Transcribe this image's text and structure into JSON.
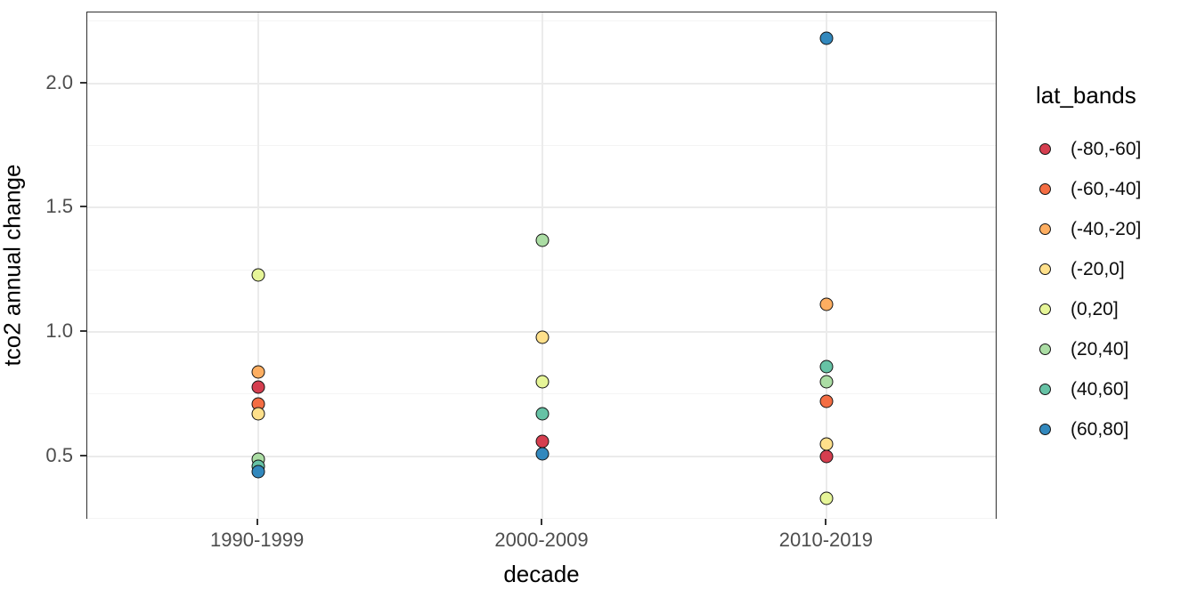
{
  "chart_data": {
    "type": "scatter",
    "title": "",
    "xlabel": "decade",
    "ylabel": "tco2 annual change",
    "legend_title": "lat_bands",
    "legend_position": "right",
    "grid": true,
    "categories": [
      "1990-1999",
      "2000-2009",
      "2010-2019"
    ],
    "y_ticks": [
      0.5,
      1.0,
      1.5,
      2.0
    ],
    "y_tick_labels": [
      "0.5",
      "1.0",
      "1.5",
      "2.0"
    ],
    "y_minor_ticks": [
      0.25,
      0.75,
      1.25,
      1.75,
      2.25
    ],
    "ylim": [
      0.245,
      2.285
    ],
    "series": [
      {
        "name": "(-80,-60]",
        "color": "#D53E4F",
        "points": [
          {
            "x": "1990-1999",
            "y": 0.78
          },
          {
            "x": "2000-2009",
            "y": 0.56
          },
          {
            "x": "2010-2019",
            "y": 0.5
          }
        ]
      },
      {
        "name": "(-60,-40]",
        "color": "#F46D43",
        "points": [
          {
            "x": "1990-1999",
            "y": 0.71
          },
          {
            "x": "2010-2019",
            "y": 0.72
          }
        ]
      },
      {
        "name": "(-40,-20]",
        "color": "#FDAE61",
        "points": [
          {
            "x": "1990-1999",
            "y": 0.84
          },
          {
            "x": "2010-2019",
            "y": 1.11
          }
        ]
      },
      {
        "name": "(-20,0]",
        "color": "#FEE08B",
        "points": [
          {
            "x": "1990-1999",
            "y": 0.67
          },
          {
            "x": "2000-2009",
            "y": 0.98
          },
          {
            "x": "2010-2019",
            "y": 0.55
          }
        ]
      },
      {
        "name": "(0,20]",
        "color": "#E6F598",
        "points": [
          {
            "x": "1990-1999",
            "y": 1.23
          },
          {
            "x": "2000-2009",
            "y": 0.8
          },
          {
            "x": "2010-2019",
            "y": 0.33
          }
        ]
      },
      {
        "name": "(20,40]",
        "color": "#ABDDA4",
        "points": [
          {
            "x": "1990-1999",
            "y": 0.49
          },
          {
            "x": "2000-2009",
            "y": 1.37
          },
          {
            "x": "2010-2019",
            "y": 0.8
          }
        ]
      },
      {
        "name": "(40,60]",
        "color": "#66C2A5",
        "points": [
          {
            "x": "1990-1999",
            "y": 0.46
          },
          {
            "x": "2000-2009",
            "y": 0.67
          },
          {
            "x": "2010-2019",
            "y": 0.86
          }
        ]
      },
      {
        "name": "(60,80]",
        "color": "#3288BD",
        "points": [
          {
            "x": "1990-1999",
            "y": 0.44
          },
          {
            "x": "2000-2009",
            "y": 0.51
          },
          {
            "x": "2010-2019",
            "y": 2.18
          }
        ]
      }
    ],
    "colors": {
      "panel_background": "#ffffff",
      "panel_border": "#2f2f2f",
      "grid_major": "#ebebeb",
      "grid_minor": "#f4f4f4",
      "axis_text": "#4d4d4d",
      "title_text": "#000000",
      "point_stroke": "#141414"
    }
  }
}
